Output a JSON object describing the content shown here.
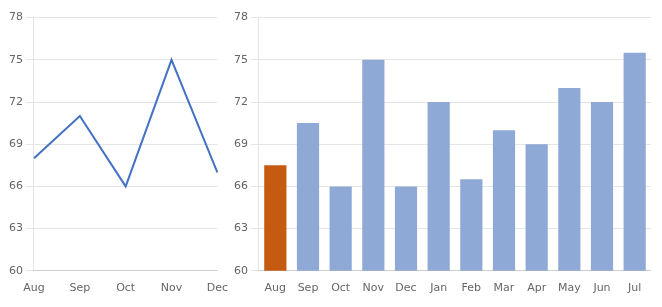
{
  "chart_data": [
    {
      "type": "line",
      "categories": [
        "Aug",
        "Sep",
        "Oct",
        "Nov",
        "Dec"
      ],
      "values": [
        68.0,
        71.0,
        66.0,
        75.0,
        67.0
      ],
      "color": "#4472C4",
      "ylim": [
        60,
        78
      ],
      "yticks": [
        60,
        63,
        66,
        69,
        72,
        75,
        78
      ],
      "grid": true
    },
    {
      "type": "bar",
      "categories": [
        "Aug",
        "Sep",
        "Oct",
        "Nov",
        "Dec",
        "Jan",
        "Feb",
        "Mar",
        "Apr",
        "May",
        "Jun",
        "Jul"
      ],
      "values": [
        67.5,
        70.5,
        66.0,
        75.0,
        66.0,
        72.0,
        66.5,
        70.0,
        69.0,
        73.0,
        72.0,
        75.5
      ],
      "colors": [
        "#C55A11",
        "#8FA9D6",
        "#8FA9D6",
        "#8FA9D6",
        "#8FA9D6",
        "#8FA9D6",
        "#8FA9D6",
        "#8FA9D6",
        "#8FA9D6",
        "#8FA9D6",
        "#8FA9D6",
        "#8FA9D6"
      ],
      "ylim": [
        60,
        78
      ],
      "yticks": [
        60,
        63,
        66,
        69,
        72,
        75,
        78
      ],
      "grid": true
    }
  ]
}
